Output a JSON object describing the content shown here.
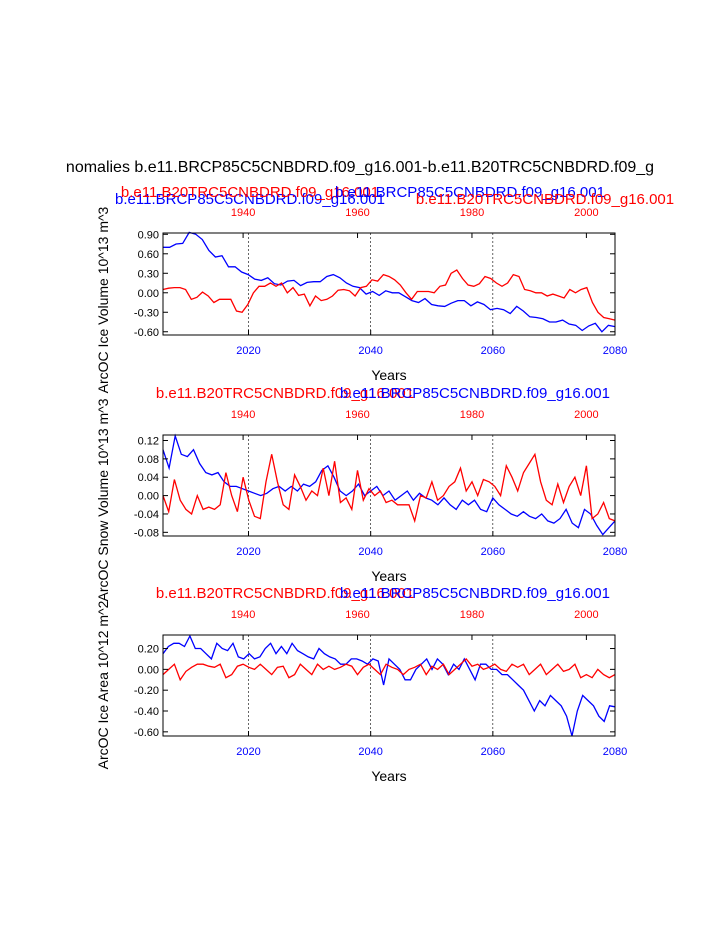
{
  "figure": {
    "title": "nomalies b.e11.BRCP85C5CNBDRD.f09_g16.001-b.e11.B20TRC5CNBDRD.f09_g",
    "colors": {
      "blue": "#0000ff",
      "red": "#ff0000",
      "text": "#000000"
    }
  },
  "chart_data": [
    {
      "type": "line",
      "id": "ice-volume",
      "ylabel": "ArcOC Ice Volume 10^13 m^3",
      "xlabel": "Years",
      "top_labels": [
        "b.e11.BRCP85C5CNBDRD.f09_g16.001",
        "b.e11.B20TRC5CNBDRD.f09_g16.001",
        "b.e11.BRCP85C5CNBDRD.f09_g16.001",
        "b.e11.B20TRC5CNBDRD.f09_g16.001"
      ],
      "xlim_bottom": [
        2006,
        2080
      ],
      "xlim_top": [
        1926,
        2005
      ],
      "bottom_ticks": [
        "2020",
        "2040",
        "2060",
        "2080"
      ],
      "top_ticks": [
        "1940",
        "1960",
        "1980",
        "2000"
      ],
      "ylim": [
        -0.65,
        0.92
      ],
      "yticks": [
        "0.90",
        "0.60",
        "0.30",
        "0.00",
        "-0.30",
        "-0.60"
      ],
      "ytick_values": [
        0.9,
        0.6,
        0.3,
        0.0,
        -0.3,
        -0.6
      ],
      "vlines": [
        2020,
        2040,
        2060
      ],
      "series": [
        {
          "name": "b.e11.BRCP85C5CNBDRD.f09_g16.001",
          "color": "#0000ff",
          "axis": "bottom",
          "values": [
            0.7,
            0.7,
            0.75,
            0.76,
            0.93,
            0.9,
            0.82,
            0.65,
            0.55,
            0.57,
            0.4,
            0.4,
            0.32,
            0.28,
            0.21,
            0.19,
            0.23,
            0.14,
            0.12,
            0.18,
            0.19,
            0.11,
            0.16,
            0.17,
            0.17,
            0.25,
            0.28,
            0.23,
            0.15,
            0.1,
            0.08,
            -0.02,
            0.02,
            -0.04,
            0.03,
            0.0,
            0.0,
            -0.06,
            -0.12,
            -0.15,
            -0.09,
            -0.18,
            -0.2,
            -0.21,
            -0.16,
            -0.12,
            -0.12,
            -0.2,
            -0.14,
            -0.18,
            -0.26,
            -0.24,
            -0.26,
            -0.32,
            -0.21,
            -0.28,
            -0.37,
            -0.38,
            -0.4,
            -0.45,
            -0.45,
            -0.42,
            -0.48,
            -0.5,
            -0.58,
            -0.51,
            -0.47,
            -0.6,
            -0.5,
            -0.52
          ]
        },
        {
          "name": "b.e11.B20TRC5CNBDRD.f09_g16.001",
          "color": "#ff0000",
          "axis": "top",
          "values": [
            0.05,
            0.07,
            0.08,
            0.08,
            0.05,
            -0.1,
            -0.07,
            0.01,
            -0.05,
            -0.15,
            -0.1,
            -0.1,
            -0.1,
            -0.28,
            -0.3,
            -0.18,
            0.0,
            0.1,
            0.1,
            0.15,
            0.1,
            0.15,
            0.0,
            0.08,
            -0.04,
            -0.02,
            -0.2,
            -0.05,
            -0.12,
            -0.1,
            -0.05,
            0.04,
            0.05,
            0.03,
            -0.05,
            0.08,
            0.1,
            0.2,
            0.18,
            0.28,
            0.25,
            0.2,
            0.12,
            0.0,
            -0.1,
            0.02,
            0.02,
            0.02,
            0.0,
            0.1,
            0.12,
            0.3,
            0.35,
            0.22,
            0.12,
            0.1,
            0.14,
            0.25,
            0.22,
            0.15,
            0.1,
            0.15,
            0.28,
            0.25,
            0.05,
            0.03,
            0.0,
            0.0,
            -0.05,
            -0.02,
            -0.05,
            -0.08,
            0.05,
            0.0,
            0.05,
            0.08,
            -0.15,
            -0.3,
            -0.38,
            -0.4,
            -0.42
          ]
        }
      ]
    },
    {
      "type": "line",
      "id": "snow-volume",
      "ylabel": "ArcOC Snow Volume 10^13 m^3",
      "xlabel": "Years",
      "top_labels": [
        "b.e11.B20TRC5CNBDRD.f09_g16.001",
        "b.e11.BRCP85C5CNBDRD.f09_g16.001"
      ],
      "xlim_bottom": [
        2006,
        2080
      ],
      "xlim_top": [
        1926,
        2005
      ],
      "bottom_ticks": [
        "2020",
        "2040",
        "2060",
        "2080"
      ],
      "top_ticks": [
        "1940",
        "1960",
        "1980",
        "2000"
      ],
      "ylim": [
        -0.088,
        0.132
      ],
      "yticks": [
        "0.12",
        "0.08",
        "0.04",
        "0.00",
        "-0.04",
        "-0.08"
      ],
      "ytick_values": [
        0.12,
        0.08,
        0.04,
        0.0,
        -0.04,
        -0.08
      ],
      "vlines": [
        2020,
        2040,
        2060
      ],
      "series": [
        {
          "name": "b.e11.BRCP85C5CNBDRD.f09_g16.001",
          "color": "#0000ff",
          "axis": "bottom",
          "values": [
            0.1,
            0.06,
            0.13,
            0.09,
            0.085,
            0.1,
            0.07,
            0.05,
            0.045,
            0.05,
            0.03,
            0.02,
            0.02,
            0.015,
            0.01,
            0.005,
            0.0,
            0.005,
            0.015,
            0.02,
            0.01,
            0.02,
            0.01,
            0.025,
            0.02,
            0.03,
            0.055,
            0.065,
            0.04,
            0.01,
            0.0,
            0.01,
            0.025,
            0.0,
            0.01,
            0.02,
            0.0,
            0.01,
            -0.01,
            0.0,
            0.01,
            -0.01,
            0.005,
            -0.005,
            -0.01,
            -0.02,
            -0.005,
            -0.02,
            -0.03,
            -0.01,
            -0.02,
            -0.01,
            -0.03,
            -0.035,
            -0.005,
            -0.02,
            -0.03,
            -0.04,
            -0.045,
            -0.035,
            -0.045,
            -0.05,
            -0.04,
            -0.055,
            -0.06,
            -0.05,
            -0.03,
            -0.06,
            -0.07,
            -0.03,
            -0.04,
            -0.065,
            -0.085,
            -0.07,
            -0.055
          ]
        },
        {
          "name": "b.e11.B20TRC5CNBDRD.f09_g16.001",
          "color": "#ff0000",
          "axis": "top",
          "values": [
            0.0,
            -0.035,
            0.035,
            -0.01,
            -0.03,
            -0.04,
            0.0,
            -0.03,
            -0.025,
            -0.03,
            -0.02,
            0.05,
            0.0,
            -0.035,
            0.04,
            -0.01,
            -0.045,
            -0.05,
            0.03,
            0.09,
            0.03,
            -0.02,
            -0.03,
            0.045,
            0.02,
            -0.01,
            0.01,
            0.0,
            0.06,
            0.0,
            0.075,
            -0.015,
            -0.005,
            -0.03,
            0.055,
            -0.01,
            0.015,
            0.0,
            0.01,
            -0.015,
            -0.01,
            -0.02,
            -0.02,
            -0.02,
            -0.055,
            0.0,
            -0.005,
            0.03,
            -0.01,
            0.0,
            0.02,
            0.03,
            0.06,
            0.01,
            0.03,
            0.0,
            0.035,
            0.03,
            0.02,
            0.0,
            0.065,
            0.04,
            0.01,
            0.05,
            0.07,
            0.09,
            0.03,
            -0.01,
            -0.02,
            0.025,
            -0.015,
            0.02,
            0.04,
            0.0,
            0.065,
            -0.05,
            -0.04,
            -0.015,
            -0.05,
            -0.055
          ]
        }
      ]
    },
    {
      "type": "line",
      "id": "ice-area",
      "ylabel": "ArcOC Ice Area 10^12 m^2",
      "xlabel": "Years",
      "top_labels": [
        "b.e11.B20TRC5CNBDRD.f09_g16.001",
        "b.e11.BRCP85C5CNBDRD.f09_g16.001"
      ],
      "xlim_bottom": [
        2006,
        2080
      ],
      "xlim_top": [
        1926,
        2005
      ],
      "bottom_ticks": [
        "2020",
        "2040",
        "2060",
        "2080"
      ],
      "top_ticks": [
        "1940",
        "1960",
        "1980",
        "2000"
      ],
      "ylim": [
        -0.64,
        0.33
      ],
      "yticks": [
        "0.20",
        "0.00",
        "-0.20",
        "-0.40",
        "-0.60"
      ],
      "ytick_values": [
        0.2,
        0.0,
        -0.2,
        -0.4,
        -0.6
      ],
      "vlines": [
        2020,
        2040,
        2060
      ],
      "series": [
        {
          "name": "b.e11.BRCP85C5CNBDRD.f09_g16.001",
          "color": "#0000ff",
          "axis": "bottom",
          "values": [
            0.15,
            0.22,
            0.25,
            0.25,
            0.22,
            0.32,
            0.2,
            0.2,
            0.15,
            0.1,
            0.25,
            0.2,
            0.18,
            0.25,
            0.12,
            0.1,
            0.15,
            0.1,
            0.12,
            0.2,
            0.25,
            0.15,
            0.22,
            0.15,
            0.25,
            0.18,
            0.15,
            0.12,
            0.1,
            0.2,
            0.15,
            0.12,
            0.1,
            0.05,
            0.05,
            0.1,
            0.1,
            0.08,
            0.05,
            0.1,
            0.08,
            -0.15,
            0.1,
            0.05,
            0.0,
            -0.1,
            -0.1,
            0.0,
            0.05,
            0.1,
            0.0,
            0.1,
            0.05,
            -0.05,
            0.05,
            0.0,
            0.1,
            0.0,
            -0.1,
            0.05,
            0.05,
            0.0,
            0.0,
            -0.05,
            -0.05,
            -0.1,
            -0.15,
            -0.2,
            -0.3,
            -0.4,
            -0.3,
            -0.35,
            -0.25,
            -0.3,
            -0.35,
            -0.45,
            -0.64,
            -0.4,
            -0.25,
            -0.3,
            -0.35,
            -0.45,
            -0.5,
            -0.35,
            -0.36
          ]
        },
        {
          "name": "b.e11.B20TRC5CNBDRD.f09_g16.001",
          "color": "#ff0000",
          "axis": "top",
          "values": [
            -0.05,
            0.0,
            0.05,
            -0.1,
            -0.02,
            0.02,
            0.05,
            0.05,
            0.03,
            0.02,
            0.05,
            -0.08,
            -0.05,
            0.03,
            0.05,
            0.02,
            0.0,
            0.05,
            0.0,
            -0.05,
            0.02,
            0.03,
            -0.08,
            -0.05,
            0.05,
            0.0,
            -0.05,
            0.05,
            0.0,
            0.03,
            0.0,
            0.02,
            0.05,
            0.03,
            -0.05,
            0.02,
            0.05,
            0.0,
            -0.05,
            0.05,
            0.02,
            0.0,
            -0.05,
            0.0,
            0.02,
            0.05,
            -0.05,
            0.03,
            0.0,
            0.05,
            -0.05,
            0.0,
            0.05,
            0.1,
            0.03,
            0.05,
            0.0,
            0.02,
            0.05,
            0.0,
            -0.02,
            0.05,
            0.02,
            0.05,
            -0.05,
            0.0,
            0.05,
            -0.05,
            0.0,
            0.05,
            -0.02,
            0.0,
            0.05,
            -0.08,
            -0.05,
            -0.08,
            0.0,
            -0.05,
            -0.08,
            -0.05
          ]
        }
      ]
    }
  ]
}
